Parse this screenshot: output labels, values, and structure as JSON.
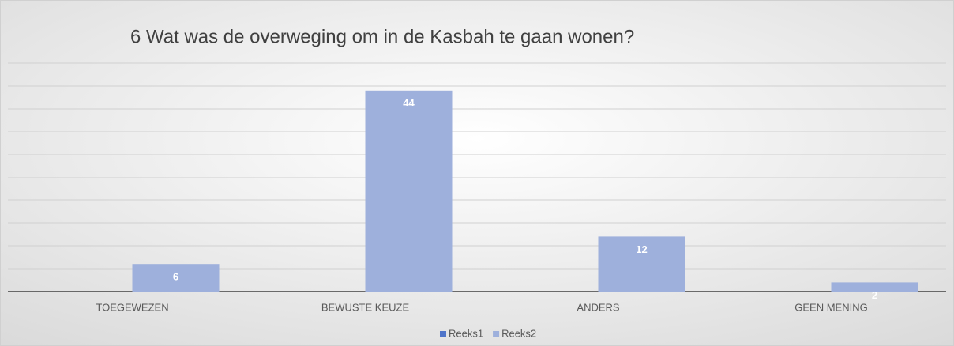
{
  "chart_data": {
    "type": "bar",
    "title": "6 Wat was de overweging om in de Kasbah te gaan wonen?",
    "categories": [
      "TOEGEWEZEN",
      "BEWUSTE KEUZE",
      "ANDERS",
      "GEEN MENING"
    ],
    "series": [
      {
        "name": "Reeks1",
        "color": "#4f74c9",
        "values": [
          null,
          null,
          null,
          null
        ]
      },
      {
        "name": "Reeks2",
        "color": "#9eb0dc",
        "values": [
          6,
          44,
          12,
          2
        ]
      }
    ],
    "ylim": [
      0,
      50
    ],
    "yticks": [
      0,
      5,
      10,
      15,
      20,
      25,
      30,
      35,
      40,
      45,
      50
    ],
    "grid": true,
    "legend": "bottom"
  }
}
